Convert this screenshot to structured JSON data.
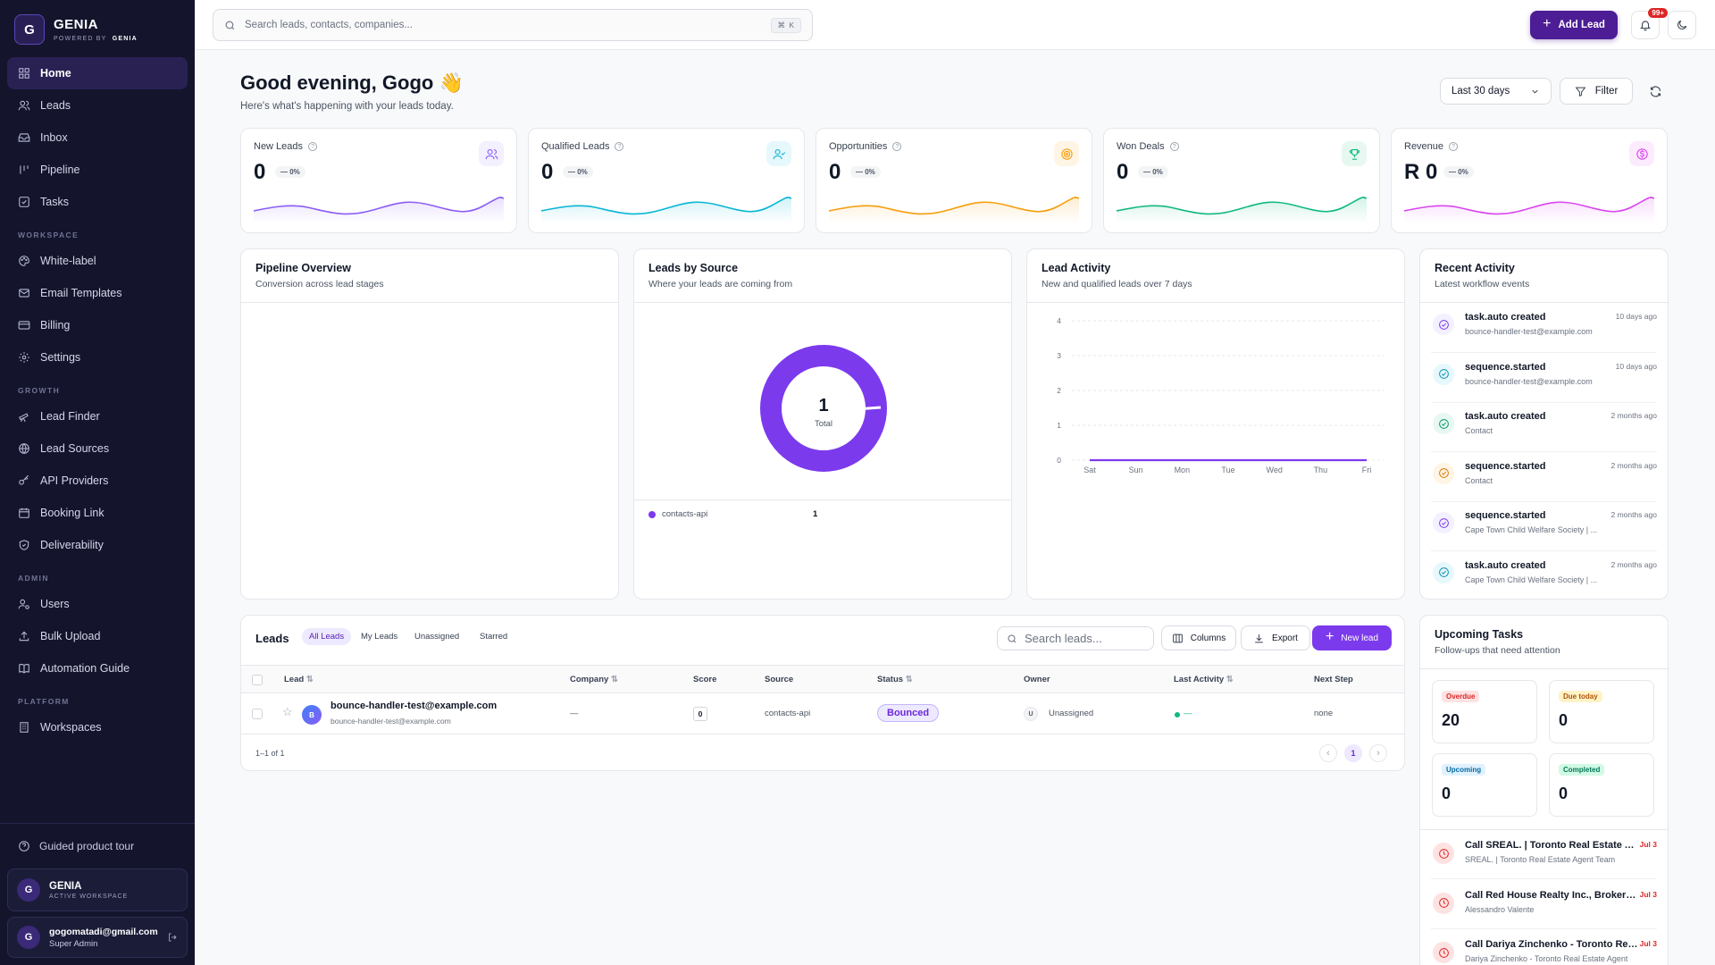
{
  "brand": {
    "logo_letter": "G",
    "name": "GENIA",
    "powered_prefix": "POWERED BY",
    "powered_name": "GENIA"
  },
  "nav": {
    "main": [
      {
        "label": "Home",
        "icon": "grid-icon",
        "active": true
      },
      {
        "label": "Leads",
        "icon": "users-icon"
      },
      {
        "label": "Inbox",
        "icon": "inbox-icon"
      },
      {
        "label": "Pipeline",
        "icon": "pipeline-icon"
      },
      {
        "label": "Tasks",
        "icon": "check-square-icon"
      }
    ],
    "workspace_label": "WORKSPACE",
    "workspace": [
      {
        "label": "White-label",
        "icon": "palette-icon"
      },
      {
        "label": "Email Templates",
        "icon": "mail-icon"
      },
      {
        "label": "Billing",
        "icon": "credit-card-icon"
      },
      {
        "label": "Settings",
        "icon": "gear-icon"
      }
    ],
    "growth_label": "GROWTH",
    "growth": [
      {
        "label": "Lead Finder",
        "icon": "telescope-icon"
      },
      {
        "label": "Lead Sources",
        "icon": "globe-icon"
      },
      {
        "label": "API Providers",
        "icon": "key-icon"
      },
      {
        "label": "Booking Link",
        "icon": "calendar-icon"
      },
      {
        "label": "Deliverability",
        "icon": "shield-icon"
      }
    ],
    "admin_label": "ADMIN",
    "admin": [
      {
        "label": "Users",
        "icon": "user-cog-icon"
      },
      {
        "label": "Bulk Upload",
        "icon": "upload-icon"
      },
      {
        "label": "Automation Guide",
        "icon": "book-icon"
      }
    ],
    "platform_label": "PLATFORM",
    "platform": [
      {
        "label": "Workspaces",
        "icon": "building-icon"
      }
    ]
  },
  "sidebar_footer": {
    "tour_label": "Guided product tour",
    "workspace": {
      "initial": "G",
      "name": "GENIA",
      "sub": "ACTIVE WORKSPACE"
    },
    "user": {
      "initial": "G",
      "email": "gogomatadi@gmail.com",
      "role": "Super Admin"
    }
  },
  "topbar": {
    "search_placeholder": "Search leads, contacts, companies...",
    "shortcut": "⌘ K",
    "add_lead_label": "Add Lead",
    "notif_badge": "99+"
  },
  "header": {
    "greeting": "Good evening, Gogo 👋",
    "subtitle": "Here's what's happening with your leads today.",
    "range": "Last 30 days",
    "filter_label": "Filter"
  },
  "stats": [
    {
      "title": "New Leads",
      "value": "0",
      "delta": "— 0%",
      "color": "#8b5cf6",
      "icon": "users-icon",
      "icon_bg": "#f3f0ff"
    },
    {
      "title": "Qualified Leads",
      "value": "0",
      "delta": "— 0%",
      "color": "#06b6d4",
      "icon": "user-check-icon",
      "icon_bg": "#e6f8fb"
    },
    {
      "title": "Opportunities",
      "value": "0",
      "delta": "— 0%",
      "color": "#f59e0b",
      "icon": "target-icon",
      "icon_bg": "#fff5e5"
    },
    {
      "title": "Won Deals",
      "value": "0",
      "delta": "— 0%",
      "color": "#10b981",
      "icon": "trophy-icon",
      "icon_bg": "#e7f8f1"
    },
    {
      "title": "Revenue",
      "value": "R 0",
      "delta": "— 0%",
      "color": "#d946ef",
      "icon": "dollar-icon",
      "icon_bg": "#fcebfd"
    }
  ],
  "pipeline": {
    "title": "Pipeline Overview",
    "subtitle": "Conversion across lead stages"
  },
  "sources": {
    "title": "Leads by Source",
    "subtitle": "Where your leads are coming from",
    "total_value": "1",
    "total_label": "Total",
    "legend": [
      {
        "name": "contacts-api",
        "value": "1",
        "color": "#7c3aed"
      }
    ]
  },
  "activity_chart": {
    "title": "Lead Activity",
    "subtitle": "New and qualified leads over 7 days"
  },
  "chart_data": {
    "type": "line",
    "categories": [
      "Sat",
      "Sun",
      "Mon",
      "Tue",
      "Wed",
      "Thu",
      "Fri"
    ],
    "y_ticks": [
      "4",
      "3",
      "2",
      "1",
      "0"
    ],
    "ylim": [
      0,
      4
    ],
    "series": [
      {
        "values": [
          0,
          0,
          0,
          0,
          0,
          0,
          0
        ],
        "color": "#7c3aed"
      }
    ],
    "grid": true
  },
  "recent": {
    "title": "Recent Activity",
    "subtitle": "Latest workflow events",
    "items": [
      {
        "title": "task.auto created",
        "sub": "bounce-handler-test@example.com",
        "time": "10 days ago",
        "color": "#7c3aed",
        "bg": "#f3f0ff"
      },
      {
        "title": "sequence.started",
        "sub": "bounce-handler-test@example.com",
        "time": "10 days ago",
        "color": "#0891b2",
        "bg": "#e6f8fb"
      },
      {
        "title": "task.auto created",
        "sub": "Contact",
        "time": "2 months ago",
        "color": "#059669",
        "bg": "#e7f8f1"
      },
      {
        "title": "sequence.started",
        "sub": "Contact",
        "time": "2 months ago",
        "color": "#d97706",
        "bg": "#fff5e5"
      },
      {
        "title": "sequence.started",
        "sub": "Cape Town Child Welfare Society | ...",
        "time": "2 months ago",
        "color": "#7c3aed",
        "bg": "#f3f0ff"
      },
      {
        "title": "task.auto created",
        "sub": "Cape Town Child Welfare Society | ...",
        "time": "2 months ago",
        "color": "#0891b2",
        "bg": "#e6f8fb"
      }
    ]
  },
  "leads_table": {
    "title": "Leads",
    "tabs": [
      "All Leads",
      "My Leads",
      "Unassigned",
      "Starred"
    ],
    "search_placeholder": "Search leads...",
    "columns_label": "Columns",
    "export_label": "Export",
    "new_label": "New lead",
    "headers": [
      "Lead",
      "Company",
      "Score",
      "Source",
      "Status",
      "Owner",
      "Last Activity",
      "Next Step"
    ],
    "rows": [
      {
        "avatar": "B",
        "name": "bounce-handler-test@example.com",
        "email": "bounce-handler-test@example.com",
        "company": "—",
        "score": "0",
        "source": "contacts-api",
        "status": "Bounced",
        "owner_initial": "U",
        "owner": "Unassigned",
        "last_activity": "—",
        "next_step": "none"
      }
    ],
    "footer_count": "1–1 of 1",
    "page": "1"
  },
  "tasks": {
    "title": "Upcoming Tasks",
    "subtitle": "Follow-ups that need attention",
    "tiles": [
      {
        "label": "Overdue",
        "value": "20",
        "fg": "#dc2626",
        "bg": "#fee2e2"
      },
      {
        "label": "Due today",
        "value": "0",
        "fg": "#b45309",
        "bg": "#fef3c7"
      },
      {
        "label": "Upcoming",
        "value": "0",
        "fg": "#0369a1",
        "bg": "#e0f2fe"
      },
      {
        "label": "Completed",
        "value": "0",
        "fg": "#047857",
        "bg": "#d1fae5"
      }
    ],
    "items": [
      {
        "title": "Call SREAL. | Toronto Real Estate Agent Team",
        "sub": "SREAL. | Toronto Real Estate Agent Team",
        "date": "Jul 3"
      },
      {
        "title": "Call Red House Realty Inc., Brokerage - Toronto",
        "sub": "Alessandro Valente",
        "date": "Jul 3"
      },
      {
        "title": "Call Dariya Zinchenko - Toronto Real Estate Agent",
        "sub": "Dariya Zinchenko - Toronto Real Estate Agent",
        "date": "Jul 3"
      }
    ]
  }
}
